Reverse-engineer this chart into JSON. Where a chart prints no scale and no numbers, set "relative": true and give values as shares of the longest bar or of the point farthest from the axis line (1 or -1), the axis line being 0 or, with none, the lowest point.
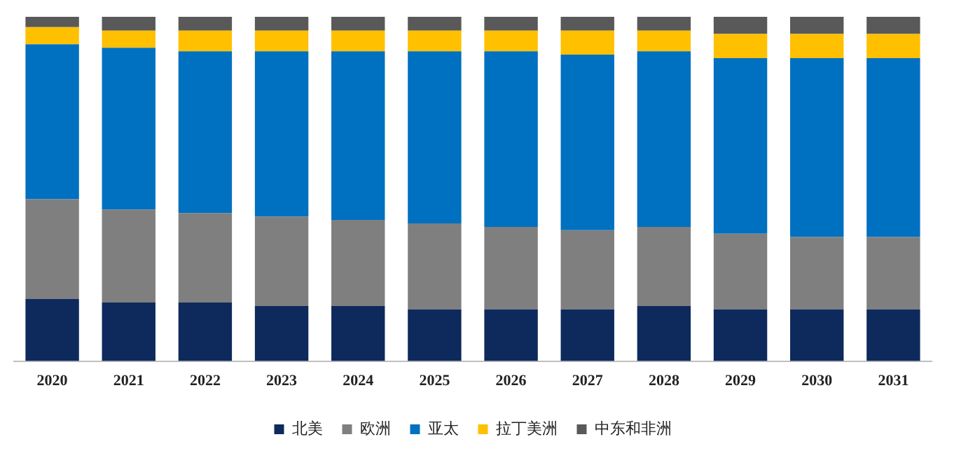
{
  "chart_data": {
    "type": "bar",
    "stacked": true,
    "relative": true,
    "legend": "bottom",
    "grid": false,
    "categories": [
      "2020",
      "2021",
      "2022",
      "2023",
      "2024",
      "2025",
      "2026",
      "2027",
      "2028",
      "2029",
      "2030",
      "2031"
    ],
    "series": [
      {
        "name": "北美",
        "color": "#0e2a5c",
        "values": [
          0.18,
          0.17,
          0.17,
          0.16,
          0.16,
          0.15,
          0.15,
          0.15,
          0.16,
          0.15,
          0.15,
          0.15
        ]
      },
      {
        "name": "欧洲",
        "color": "#7f7f7f",
        "values": [
          0.29,
          0.27,
          0.26,
          0.26,
          0.25,
          0.25,
          0.24,
          0.23,
          0.23,
          0.22,
          0.21,
          0.21
        ]
      },
      {
        "name": "亚太",
        "color": "#0070c0",
        "values": [
          0.45,
          0.47,
          0.47,
          0.48,
          0.49,
          0.5,
          0.51,
          0.51,
          0.51,
          0.51,
          0.52,
          0.52
        ]
      },
      {
        "name": "拉丁美洲",
        "color": "#ffc000",
        "values": [
          0.05,
          0.05,
          0.06,
          0.06,
          0.06,
          0.06,
          0.06,
          0.07,
          0.06,
          0.07,
          0.07,
          0.07
        ]
      },
      {
        "name": "中东和非洲",
        "color": "#595959",
        "values": [
          0.03,
          0.04,
          0.04,
          0.04,
          0.04,
          0.04,
          0.04,
          0.04,
          0.04,
          0.05,
          0.05,
          0.05
        ]
      }
    ]
  }
}
